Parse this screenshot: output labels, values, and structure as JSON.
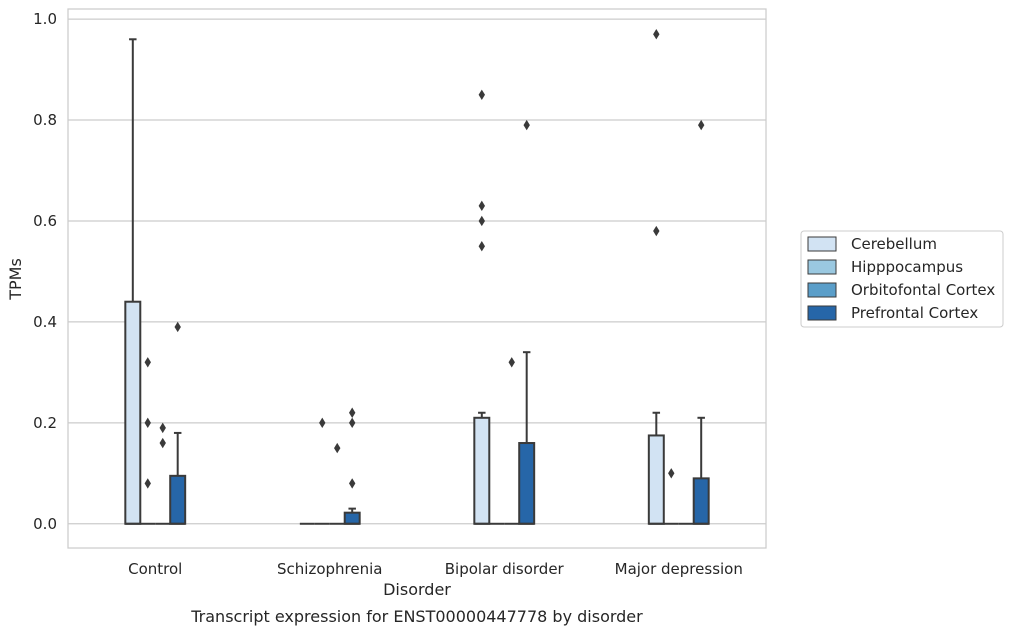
{
  "chart_data": {
    "type": "box",
    "caption": "Transcript expression for ENST00000447778 by disorder",
    "xlabel": "Disorder",
    "ylabel": "TPMs",
    "ylim": [
      -0.048,
      1.02
    ],
    "yticks": [
      0.0,
      0.2,
      0.4,
      0.6,
      0.8,
      1.0
    ],
    "ytick_labels": [
      "0.0",
      "0.2",
      "0.4",
      "0.6",
      "0.8",
      "1.0"
    ],
    "grid": true,
    "legend_position": "right",
    "categories": [
      "Control",
      "Schizophrenia",
      "Bipolar disorder",
      "Major depression"
    ],
    "series": [
      {
        "name": "Cerebellum",
        "color": "#d2e3f3",
        "boxes": [
          {
            "q1": 0,
            "median": 0,
            "q3": 0.44,
            "whislo": 0,
            "whishi": 0.96,
            "fliers": []
          },
          {
            "q1": 0,
            "median": 0,
            "q3": 0,
            "whislo": 0,
            "whishi": 0,
            "fliers": []
          },
          {
            "q1": 0,
            "median": 0,
            "q3": 0.21,
            "whislo": 0,
            "whishi": 0.22,
            "fliers": [
              0.55,
              0.6,
              0.63,
              0.85
            ]
          },
          {
            "q1": 0,
            "median": 0,
            "q3": 0.175,
            "whislo": 0,
            "whishi": 0.22,
            "fliers": [
              0.58,
              0.97
            ]
          }
        ]
      },
      {
        "name": "Hipppocampus",
        "color": "#9ac8e0",
        "boxes": [
          {
            "q1": 0,
            "median": 0,
            "q3": 0,
            "whislo": 0,
            "whishi": 0,
            "fliers": [
              0.08,
              0.2,
              0.32
            ]
          },
          {
            "q1": 0,
            "median": 0,
            "q3": 0,
            "whislo": 0,
            "whishi": 0,
            "fliers": [
              0.2
            ]
          },
          {
            "q1": 0,
            "median": 0,
            "q3": 0,
            "whislo": 0,
            "whishi": 0,
            "fliers": []
          },
          {
            "q1": 0,
            "median": 0,
            "q3": 0,
            "whislo": 0,
            "whishi": 0,
            "fliers": [
              0.1
            ]
          }
        ]
      },
      {
        "name": "Orbitofontal Cortex",
        "color": "#5a9ec9",
        "boxes": [
          {
            "q1": 0,
            "median": 0,
            "q3": 0,
            "whislo": 0,
            "whishi": 0,
            "fliers": [
              0.16,
              0.19
            ]
          },
          {
            "q1": 0,
            "median": 0,
            "q3": 0,
            "whislo": 0,
            "whishi": 0,
            "fliers": [
              0.15
            ]
          },
          {
            "q1": 0,
            "median": 0,
            "q3": 0,
            "whislo": 0,
            "whishi": 0,
            "fliers": [
              0.32
            ]
          },
          {
            "q1": 0,
            "median": 0,
            "q3": 0,
            "whislo": 0,
            "whishi": 0,
            "fliers": []
          }
        ]
      },
      {
        "name": "Prefrontal Cortex",
        "color": "#2666a8",
        "boxes": [
          {
            "q1": 0,
            "median": 0,
            "q3": 0.095,
            "whislo": 0,
            "whishi": 0.18,
            "fliers": [
              0.39
            ]
          },
          {
            "q1": 0,
            "median": 0,
            "q3": 0.022,
            "whislo": 0,
            "whishi": 0.03,
            "fliers": [
              0.08,
              0.2,
              0.22
            ]
          },
          {
            "q1": 0,
            "median": 0,
            "q3": 0.16,
            "whislo": 0,
            "whishi": 0.34,
            "fliers": [
              0.79
            ]
          },
          {
            "q1": 0,
            "median": 0,
            "q3": 0.09,
            "whislo": 0,
            "whishi": 0.21,
            "fliers": [
              0.79
            ]
          }
        ]
      }
    ]
  }
}
